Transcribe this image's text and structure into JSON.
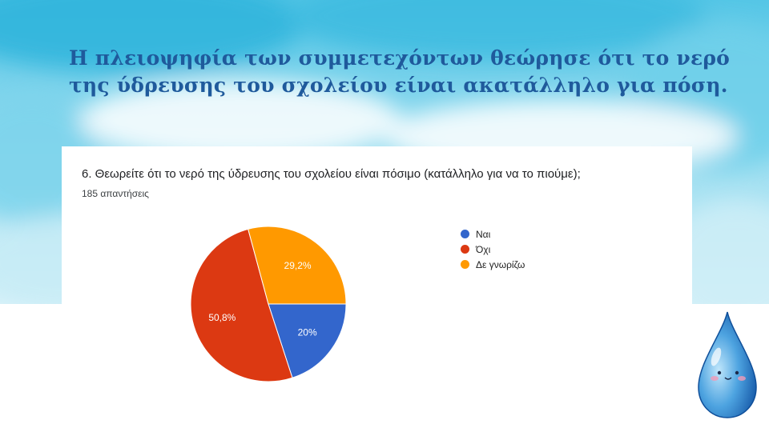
{
  "slide": {
    "title_line1": "Η πλειοψηφία των συμμετεχόντων θεώρησε ότι το νερό",
    "title_line2": "της ύδρευσης του σχολείου είναι ακατάλληλο για πόση."
  },
  "chart_data": {
    "type": "pie",
    "title": "6. Θεωρείτε ότι το νερό της ύδρευσης του σχολείου είναι πόσιμο (κατάλληλο για να το πιούμε);",
    "subtitle": "185 απαντήσεις",
    "legend_position": "right",
    "slices": [
      {
        "label": "Ναι",
        "value": 20,
        "display": "20%",
        "color": "#3366cc"
      },
      {
        "label": "Όχι",
        "value": 50.8,
        "display": "50,8%",
        "color": "#dc3912"
      },
      {
        "label": "Δε γνωρίζω",
        "value": 29.2,
        "display": "29,2%",
        "color": "#ff9900"
      }
    ]
  },
  "colors": {
    "title": "#1f5a9c",
    "sky": "#4cc3e3"
  }
}
